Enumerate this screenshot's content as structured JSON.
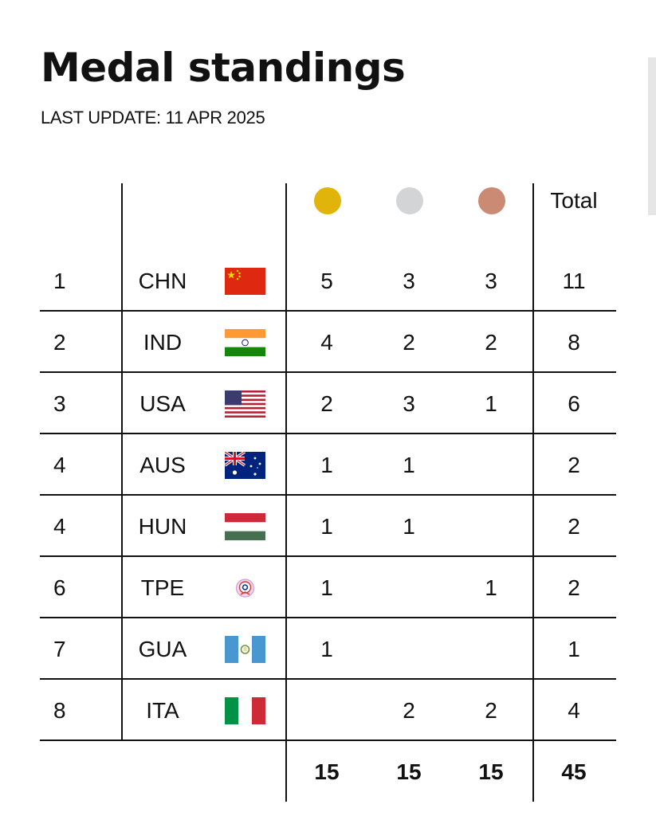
{
  "header": {
    "title": "Medal standings",
    "last_update": "LAST UPDATE: 11 APR 2025"
  },
  "columns": {
    "gold_color": "#e1b40c",
    "silver_color": "#d3d4d6",
    "bronze_color": "#ca8a74",
    "total_label": "Total"
  },
  "rows": [
    {
      "rank": "1",
      "code": "CHN",
      "flag": "china-flag-icon",
      "gold": "5",
      "silver": "3",
      "bronze": "3",
      "total": "11"
    },
    {
      "rank": "2",
      "code": "IND",
      "flag": "india-flag-icon",
      "gold": "4",
      "silver": "2",
      "bronze": "2",
      "total": "8"
    },
    {
      "rank": "3",
      "code": "USA",
      "flag": "usa-flag-icon",
      "gold": "2",
      "silver": "3",
      "bronze": "1",
      "total": "6"
    },
    {
      "rank": "4",
      "code": "AUS",
      "flag": "australia-flag-icon",
      "gold": "1",
      "silver": "1",
      "bronze": "",
      "total": "2"
    },
    {
      "rank": "4",
      "code": "HUN",
      "flag": "hungary-flag-icon",
      "gold": "1",
      "silver": "1",
      "bronze": "",
      "total": "2"
    },
    {
      "rank": "6",
      "code": "TPE",
      "flag": "chinese-taipei-flag-icon",
      "gold": "1",
      "silver": "",
      "bronze": "1",
      "total": "2"
    },
    {
      "rank": "7",
      "code": "GUA",
      "flag": "guatemala-flag-icon",
      "gold": "1",
      "silver": "",
      "bronze": "",
      "total": "1"
    },
    {
      "rank": "8",
      "code": "ITA",
      "flag": "italy-flag-icon",
      "gold": "",
      "silver": "2",
      "bronze": "2",
      "total": "4"
    }
  ],
  "totals": {
    "gold": "15",
    "silver": "15",
    "bronze": "15",
    "total": "45"
  }
}
